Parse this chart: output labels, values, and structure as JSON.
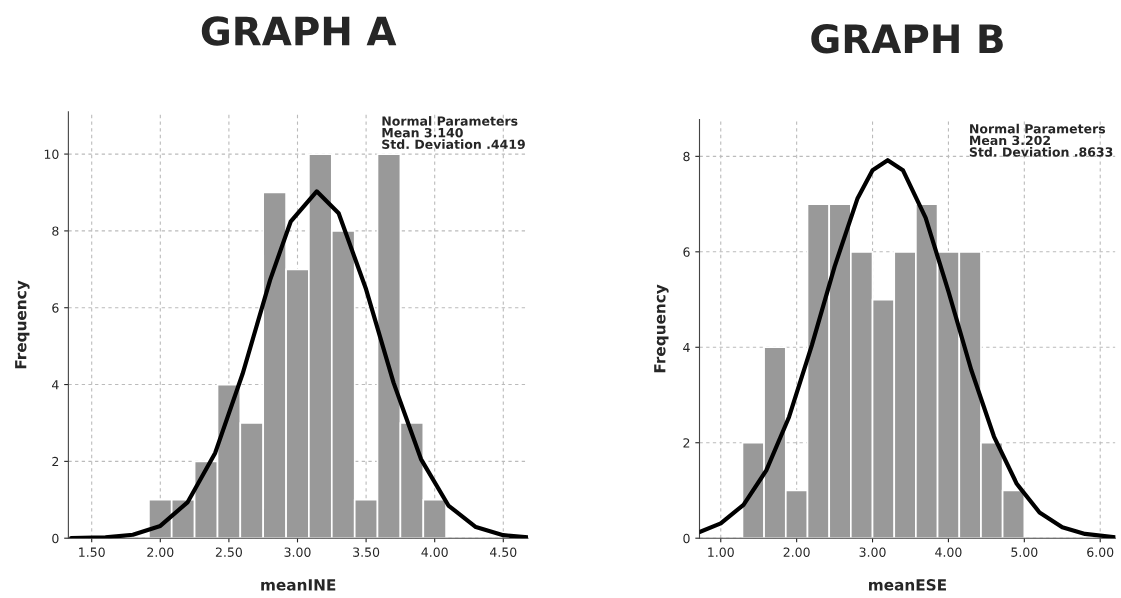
{
  "chart_data": [
    {
      "type": "histogram",
      "title": "GRAPH A",
      "xlabel": "meanINE",
      "ylabel": "Frequency",
      "series": [
        {
          "color": "#999999",
          "bins": [
            1.917,
            2.083,
            2.25,
            2.417,
            2.583,
            2.75,
            2.917,
            3.083,
            3.25,
            3.417,
            3.583,
            3.75,
            3.917,
            4.083
          ],
          "values": [
            1,
            1,
            2,
            4,
            3,
            9,
            7,
            10,
            8,
            1,
            10,
            3,
            1
          ]
        },
        {
          "type": "line",
          "color": "#000000",
          "x": [
            1.35,
            1.6,
            1.8,
            2.0,
            2.2,
            2.4,
            2.6,
            2.8,
            2.95,
            3.14,
            3.3,
            3.5,
            3.7,
            3.9,
            4.1,
            4.3,
            4.5,
            4.68
          ],
          "values": [
            0.0,
            0.02,
            0.09,
            0.32,
            0.94,
            2.22,
            4.28,
            6.72,
            8.24,
            9.03,
            8.46,
            6.48,
            4.05,
            2.06,
            0.85,
            0.29,
            0.08,
            0.02
          ]
        }
      ],
      "annotations": [
        "Normal Parameters\nMean 3.140\nStd. Deviation .4419"
      ],
      "xlim": [
        1.33,
        4.68
      ],
      "ylim": [
        0,
        11.1
      ],
      "xticks": [
        {
          "value": 1.5,
          "label": "1.50"
        },
        {
          "value": 2.0,
          "label": "2.00"
        },
        {
          "value": 2.5,
          "label": "2.50"
        },
        {
          "value": 3.0,
          "label": "3.00"
        },
        {
          "value": 3.5,
          "label": "3.50"
        },
        {
          "value": 4.0,
          "label": "4.00"
        },
        {
          "value": 4.5,
          "label": "4.50"
        }
      ],
      "yticks": [
        0,
        2,
        4,
        6,
        8,
        10
      ],
      "grid": true,
      "line_style": "solid"
    },
    {
      "type": "histogram",
      "title": "GRAPH B",
      "xlabel": "meanESE",
      "ylabel": "Frequency",
      "series": [
        {
          "color": "#999999",
          "bins": [
            1.286,
            1.571,
            1.857,
            2.143,
            2.429,
            2.714,
            3.0,
            3.286,
            3.571,
            3.857,
            4.143,
            4.429,
            4.714,
            5.0
          ],
          "values": [
            2,
            4,
            1,
            7,
            7,
            6,
            5,
            6,
            7,
            6,
            6,
            2,
            1
          ]
        },
        {
          "type": "line",
          "color": "#000000",
          "x": [
            0.72,
            1.0,
            1.3,
            1.6,
            1.9,
            2.2,
            2.5,
            2.8,
            3.0,
            3.2,
            3.4,
            3.7,
            4.0,
            4.3,
            4.6,
            4.9,
            5.2,
            5.5,
            5.8,
            6.2
          ],
          "values": [
            0.13,
            0.31,
            0.7,
            1.42,
            2.54,
            4.04,
            5.69,
            7.11,
            7.71,
            7.92,
            7.71,
            6.71,
            5.17,
            3.53,
            2.13,
            1.14,
            0.54,
            0.23,
            0.09,
            0.02
          ]
        }
      ],
      "annotations": [
        "Normal Parameters\nMean 3.202\nStd. Deviation .8633"
      ],
      "xlim": [
        0.72,
        6.2
      ],
      "ylim": [
        0,
        8.77
      ],
      "xticks": [
        {
          "value": 1.0,
          "label": "1.00"
        },
        {
          "value": 2.0,
          "label": "2.00"
        },
        {
          "value": 3.0,
          "label": "3.00"
        },
        {
          "value": 4.0,
          "label": "4.00"
        },
        {
          "value": 5.0,
          "label": "5.00"
        },
        {
          "value": 6.0,
          "label": "6.00"
        }
      ],
      "yticks": [
        0,
        2,
        4,
        6,
        8
      ],
      "grid": true,
      "line_style": "solid"
    }
  ]
}
